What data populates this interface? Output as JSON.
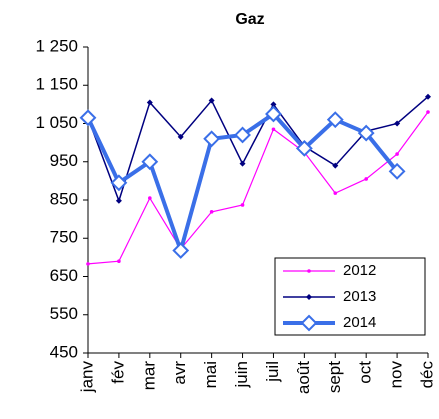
{
  "chart_data": {
    "type": "line",
    "title": "Gaz",
    "categories": [
      "janv",
      "fév",
      "mar",
      "avr",
      "mai",
      "juin",
      "juil",
      "août",
      "sept",
      "oct",
      "nov",
      "déc"
    ],
    "series": [
      {
        "name": "2012",
        "color": "#ff00ff",
        "values": [
          683,
          690,
          855,
          722,
          819,
          837,
          1035,
          975,
          868,
          905,
          970,
          1080
        ]
      },
      {
        "name": "2013",
        "color": "#000080",
        "values": [
          1065,
          848,
          1105,
          1015,
          1110,
          945,
          1100,
          990,
          940,
          1030,
          1050,
          1120
        ]
      },
      {
        "name": "2014",
        "color": "#3a6fe8",
        "values": [
          1065,
          895,
          950,
          718,
          1010,
          1020,
          1075,
          985,
          1060,
          1025,
          925,
          null
        ]
      }
    ],
    "ylim": [
      450,
      1250
    ],
    "yticks": [
      450,
      550,
      650,
      750,
      850,
      950,
      {
        "value": 1050,
        "label": "1 050"
      },
      {
        "value": 1150,
        "label": "1 150"
      },
      {
        "value": 1250,
        "label": "1 250"
      }
    ],
    "legend": "lower right",
    "grid": false
  }
}
